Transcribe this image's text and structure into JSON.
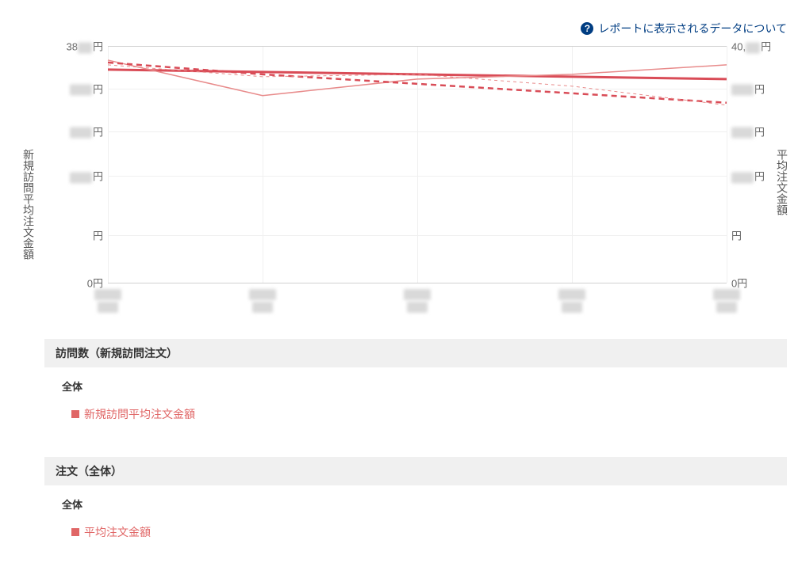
{
  "help_link": {
    "label": "レポートに表示されるデータについて"
  },
  "chart": {
    "type": "line",
    "background_color": "#ffffff",
    "grid_color": "#e8e8e8",
    "left_axis": {
      "title": "新規訪問平均注文金額",
      "unit": "円",
      "visible_top_value": "38",
      "ylim": [
        0,
        38000
      ],
      "tick_positions_pct": [
        0,
        18,
        36,
        55,
        80,
        100
      ],
      "tick_blurred": [
        true,
        true,
        true,
        true,
        false,
        false
      ],
      "tick_labels": [
        "38",
        "",
        "",
        "",
        "",
        "0"
      ]
    },
    "right_axis": {
      "title": "平均注文金額",
      "unit": "円",
      "visible_top_value": "40,",
      "ylim": [
        0,
        40000
      ],
      "tick_positions_pct": [
        0,
        18,
        36,
        55,
        80,
        100
      ],
      "tick_blurred": [
        true,
        true,
        true,
        true,
        false,
        false
      ],
      "tick_labels": [
        "40,",
        "",
        "",
        "",
        "",
        "0"
      ]
    },
    "x": {
      "categories": 5,
      "positions_pct": [
        0,
        25,
        50,
        75,
        100
      ],
      "labels_blurred": true
    },
    "series": [
      {
        "name": "新規訪問平均注文金額-trend",
        "color": "#d94c57",
        "width": 3,
        "dash": null,
        "y_pct": [
          10,
          11,
          12,
          13,
          14
        ]
      },
      {
        "name": "新規訪問平均注文金額",
        "color": "#e88b8b",
        "width": 1.5,
        "dash": null,
        "y_pct": [
          6,
          21,
          14,
          12,
          8
        ]
      },
      {
        "name": "平均注文金額-trend",
        "color": "#d94c57",
        "width": 2.5,
        "dash": "7,5",
        "y_pct": [
          7,
          12,
          16,
          20,
          24
        ]
      },
      {
        "name": "平均注文金額",
        "color": "#e88b8b",
        "width": 1,
        "dash": "4,4",
        "y_pct": [
          8,
          13,
          12,
          17,
          25
        ]
      }
    ]
  },
  "sections": [
    {
      "header": "訪問数（新規訪問注文）",
      "group": "全体",
      "legend": {
        "label": "新規訪問平均注文金額",
        "color": "#e06666"
      }
    },
    {
      "header": "注文（全体）",
      "group": "全体",
      "legend": {
        "label": "平均注文金額",
        "color": "#e06666"
      }
    }
  ]
}
